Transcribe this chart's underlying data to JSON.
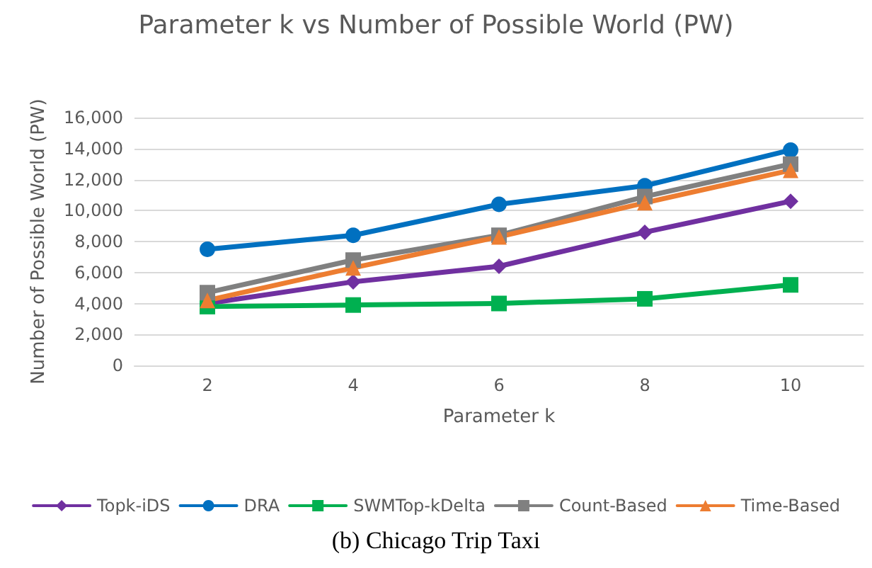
{
  "chart_data": {
    "type": "line",
    "title": "Parameter k vs Number of Possible World (PW)",
    "xlabel": "Parameter k",
    "ylabel": "Number of Possible World (PW)",
    "categories": [
      "2",
      "4",
      "6",
      "8",
      "10"
    ],
    "series": [
      {
        "name": "Topk-iDS",
        "color": "#7030a0",
        "marker": "diamond",
        "values": [
          4000,
          5400,
          6400,
          8600,
          10600
        ]
      },
      {
        "name": "DRA",
        "color": "#0070c0",
        "marker": "circle",
        "values": [
          7500,
          8400,
          10400,
          11600,
          13900
        ]
      },
      {
        "name": "SWMTop-kDelta",
        "color": "#00b050",
        "marker": "square",
        "values": [
          3800,
          3900,
          4000,
          4300,
          5200
        ]
      },
      {
        "name": "Count-Based",
        "color": "#808080",
        "marker": "cross",
        "values": [
          4700,
          6800,
          8400,
          10900,
          13000
        ]
      },
      {
        "name": "Time-Based",
        "color": "#ed7d31",
        "marker": "triangle",
        "values": [
          4200,
          6300,
          8300,
          10500,
          12600
        ]
      }
    ],
    "ylim": [
      0,
      16000
    ],
    "yticks": [
      0,
      {
        "value": 2000,
        "label": "2,000"
      },
      {
        "value": 4000,
        "label": "4,000"
      },
      {
        "value": 6000,
        "label": "6,000"
      },
      {
        "value": 8000,
        "label": "8,000"
      },
      {
        "value": 10000,
        "label": "10,000"
      },
      {
        "value": 12000,
        "label": "12,000"
      },
      {
        "value": 14000,
        "label": "14,000"
      },
      {
        "value": 16000,
        "label": "16,000"
      }
    ],
    "grid": "y",
    "legend": "bottom",
    "line_style": "solid",
    "annotations": [
      "(b) Chicago Trip Taxi"
    ]
  }
}
